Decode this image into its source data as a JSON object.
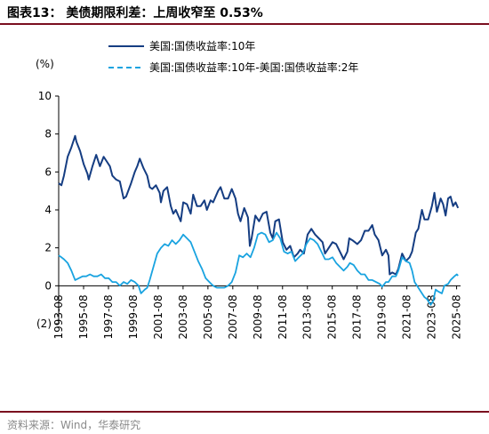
{
  "title": "图表13：  美债期限利差：上周收窄至 0.53%",
  "source": "资料来源：Wind，华泰研究",
  "colors": {
    "series1": "#153d82",
    "series2": "#19a3e0",
    "rule": "#7a0f1f"
  },
  "chart_data": {
    "type": "line",
    "ylabel": "(%)",
    "ylim": [
      -2,
      10
    ],
    "yticks": [
      10,
      8,
      6,
      4,
      2,
      0,
      -2
    ],
    "ytick_labels": [
      "10",
      "8",
      "6",
      "4",
      "2",
      "0",
      "(2)"
    ],
    "xlim": [
      1993.58,
      2025.9
    ],
    "xtick_labels": [
      "1993-08",
      "1995-08",
      "1997-08",
      "1999-08",
      "2001-08",
      "2003-08",
      "2005-08",
      "2007-08",
      "2009-08",
      "2011-08",
      "2013-08",
      "2015-08",
      "2017-08",
      "2019-08",
      "2021-08",
      "2023-08",
      "2025-08"
    ],
    "legend_position": "top",
    "series": [
      {
        "name": "美国:国债收益率:10年",
        "style": "solid",
        "points": [
          [
            1993.58,
            5.4
          ],
          [
            1993.8,
            5.3
          ],
          [
            1994.0,
            5.8
          ],
          [
            1994.3,
            6.8
          ],
          [
            1994.6,
            7.3
          ],
          [
            1994.9,
            7.9
          ],
          [
            1995.0,
            7.6
          ],
          [
            1995.3,
            7.1
          ],
          [
            1995.6,
            6.4
          ],
          [
            1995.9,
            5.9
          ],
          [
            1996.0,
            5.6
          ],
          [
            1996.3,
            6.3
          ],
          [
            1996.6,
            6.9
          ],
          [
            1996.9,
            6.3
          ],
          [
            1997.2,
            6.8
          ],
          [
            1997.4,
            6.6
          ],
          [
            1997.7,
            6.3
          ],
          [
            1997.9,
            5.8
          ],
          [
            1998.2,
            5.6
          ],
          [
            1998.5,
            5.5
          ],
          [
            1998.8,
            4.6
          ],
          [
            1999.0,
            4.7
          ],
          [
            1999.4,
            5.4
          ],
          [
            1999.7,
            6.0
          ],
          [
            1999.9,
            6.3
          ],
          [
            2000.1,
            6.7
          ],
          [
            2000.4,
            6.2
          ],
          [
            2000.7,
            5.8
          ],
          [
            2000.9,
            5.2
          ],
          [
            2001.1,
            5.1
          ],
          [
            2001.4,
            5.3
          ],
          [
            2001.7,
            4.9
          ],
          [
            2001.8,
            4.4
          ],
          [
            2002.0,
            5.0
          ],
          [
            2002.3,
            5.2
          ],
          [
            2002.6,
            4.2
          ],
          [
            2002.8,
            3.8
          ],
          [
            2003.0,
            4.0
          ],
          [
            2003.4,
            3.4
          ],
          [
            2003.6,
            4.4
          ],
          [
            2003.9,
            4.3
          ],
          [
            2004.2,
            3.8
          ],
          [
            2004.4,
            4.8
          ],
          [
            2004.7,
            4.2
          ],
          [
            2005.0,
            4.2
          ],
          [
            2005.3,
            4.5
          ],
          [
            2005.5,
            4.0
          ],
          [
            2005.8,
            4.5
          ],
          [
            2006.0,
            4.4
          ],
          [
            2006.4,
            5.0
          ],
          [
            2006.6,
            5.2
          ],
          [
            2006.9,
            4.6
          ],
          [
            2007.2,
            4.6
          ],
          [
            2007.5,
            5.1
          ],
          [
            2007.8,
            4.6
          ],
          [
            2008.0,
            3.8
          ],
          [
            2008.2,
            3.4
          ],
          [
            2008.5,
            4.1
          ],
          [
            2008.8,
            3.6
          ],
          [
            2008.95,
            2.1
          ],
          [
            2009.1,
            2.5
          ],
          [
            2009.4,
            3.7
          ],
          [
            2009.7,
            3.4
          ],
          [
            2010.0,
            3.8
          ],
          [
            2010.3,
            3.9
          ],
          [
            2010.6,
            2.8
          ],
          [
            2010.8,
            2.5
          ],
          [
            2011.0,
            3.4
          ],
          [
            2011.3,
            3.5
          ],
          [
            2011.6,
            2.3
          ],
          [
            2011.9,
            1.9
          ],
          [
            2012.2,
            2.1
          ],
          [
            2012.5,
            1.5
          ],
          [
            2012.8,
            1.7
          ],
          [
            2013.0,
            1.9
          ],
          [
            2013.3,
            1.7
          ],
          [
            2013.6,
            2.7
          ],
          [
            2013.9,
            3.0
          ],
          [
            2014.2,
            2.7
          ],
          [
            2014.5,
            2.5
          ],
          [
            2014.8,
            2.3
          ],
          [
            2015.0,
            1.7
          ],
          [
            2015.3,
            2.0
          ],
          [
            2015.6,
            2.3
          ],
          [
            2015.9,
            2.2
          ],
          [
            2016.2,
            1.8
          ],
          [
            2016.5,
            1.4
          ],
          [
            2016.8,
            1.8
          ],
          [
            2016.95,
            2.5
          ],
          [
            2017.2,
            2.4
          ],
          [
            2017.6,
            2.2
          ],
          [
            2017.9,
            2.4
          ],
          [
            2018.2,
            2.9
          ],
          [
            2018.5,
            2.9
          ],
          [
            2018.8,
            3.2
          ],
          [
            2019.0,
            2.7
          ],
          [
            2019.3,
            2.4
          ],
          [
            2019.6,
            1.6
          ],
          [
            2019.9,
            1.9
          ],
          [
            2020.1,
            1.6
          ],
          [
            2020.2,
            0.6
          ],
          [
            2020.4,
            0.7
          ],
          [
            2020.7,
            0.6
          ],
          [
            2020.9,
            0.9
          ],
          [
            2021.2,
            1.7
          ],
          [
            2021.5,
            1.3
          ],
          [
            2021.8,
            1.5
          ],
          [
            2022.0,
            1.8
          ],
          [
            2022.3,
            2.8
          ],
          [
            2022.5,
            3.0
          ],
          [
            2022.8,
            4.0
          ],
          [
            2023.0,
            3.5
          ],
          [
            2023.3,
            3.5
          ],
          [
            2023.6,
            4.2
          ],
          [
            2023.8,
            4.9
          ],
          [
            2024.0,
            3.9
          ],
          [
            2024.3,
            4.6
          ],
          [
            2024.5,
            4.3
          ],
          [
            2024.7,
            3.7
          ],
          [
            2024.9,
            4.6
          ],
          [
            2025.1,
            4.7
          ],
          [
            2025.3,
            4.2
          ],
          [
            2025.5,
            4.4
          ],
          [
            2025.7,
            4.1
          ]
        ]
      },
      {
        "name": "美国:国债收益率:10年-美国:国债收益率:2年",
        "style": "dashed",
        "points": [
          [
            1993.58,
            1.6
          ],
          [
            1993.8,
            1.5
          ],
          [
            1994.0,
            1.4
          ],
          [
            1994.3,
            1.2
          ],
          [
            1994.6,
            0.8
          ],
          [
            1994.9,
            0.3
          ],
          [
            1995.2,
            0.4
          ],
          [
            1995.5,
            0.5
          ],
          [
            1995.8,
            0.5
          ],
          [
            1996.1,
            0.6
          ],
          [
            1996.4,
            0.5
          ],
          [
            1996.7,
            0.5
          ],
          [
            1997.0,
            0.6
          ],
          [
            1997.3,
            0.4
          ],
          [
            1997.6,
            0.4
          ],
          [
            1997.9,
            0.2
          ],
          [
            1998.2,
            0.2
          ],
          [
            1998.5,
            0.0
          ],
          [
            1998.8,
            0.2
          ],
          [
            1999.1,
            0.1
          ],
          [
            1999.4,
            0.3
          ],
          [
            1999.7,
            0.2
          ],
          [
            2000.0,
            0.0
          ],
          [
            2000.2,
            -0.4
          ],
          [
            2000.5,
            -0.2
          ],
          [
            2000.7,
            -0.1
          ],
          [
            2000.9,
            0.3
          ],
          [
            2001.2,
            1.0
          ],
          [
            2001.5,
            1.7
          ],
          [
            2001.8,
            2.0
          ],
          [
            2002.1,
            2.2
          ],
          [
            2002.4,
            2.1
          ],
          [
            2002.7,
            2.4
          ],
          [
            2003.0,
            2.2
          ],
          [
            2003.3,
            2.4
          ],
          [
            2003.6,
            2.7
          ],
          [
            2003.9,
            2.5
          ],
          [
            2004.2,
            2.3
          ],
          [
            2004.5,
            1.8
          ],
          [
            2004.8,
            1.3
          ],
          [
            2005.1,
            0.9
          ],
          [
            2005.4,
            0.4
          ],
          [
            2005.7,
            0.2
          ],
          [
            2006.0,
            0.0
          ],
          [
            2006.3,
            -0.1
          ],
          [
            2006.6,
            -0.1
          ],
          [
            2006.9,
            -0.1
          ],
          [
            2007.2,
            0.0
          ],
          [
            2007.5,
            0.2
          ],
          [
            2007.8,
            0.7
          ],
          [
            2008.1,
            1.6
          ],
          [
            2008.4,
            1.5
          ],
          [
            2008.7,
            1.7
          ],
          [
            2009.0,
            1.5
          ],
          [
            2009.3,
            2.0
          ],
          [
            2009.6,
            2.7
          ],
          [
            2009.9,
            2.8
          ],
          [
            2010.2,
            2.7
          ],
          [
            2010.5,
            2.3
          ],
          [
            2010.8,
            2.4
          ],
          [
            2011.1,
            2.8
          ],
          [
            2011.4,
            2.5
          ],
          [
            2011.7,
            1.8
          ],
          [
            2012.0,
            1.7
          ],
          [
            2012.3,
            1.8
          ],
          [
            2012.6,
            1.3
          ],
          [
            2012.9,
            1.5
          ],
          [
            2013.2,
            1.7
          ],
          [
            2013.5,
            2.2
          ],
          [
            2013.8,
            2.5
          ],
          [
            2014.1,
            2.4
          ],
          [
            2014.4,
            2.2
          ],
          [
            2014.7,
            1.8
          ],
          [
            2015.0,
            1.4
          ],
          [
            2015.3,
            1.4
          ],
          [
            2015.6,
            1.5
          ],
          [
            2015.9,
            1.2
          ],
          [
            2016.2,
            1.0
          ],
          [
            2016.5,
            0.8
          ],
          [
            2016.8,
            1.0
          ],
          [
            2017.0,
            1.2
          ],
          [
            2017.3,
            1.1
          ],
          [
            2017.6,
            0.8
          ],
          [
            2017.9,
            0.6
          ],
          [
            2018.2,
            0.6
          ],
          [
            2018.5,
            0.3
          ],
          [
            2018.8,
            0.3
          ],
          [
            2019.1,
            0.2
          ],
          [
            2019.4,
            0.1
          ],
          [
            2019.6,
            -0.05
          ],
          [
            2019.9,
            0.2
          ],
          [
            2020.1,
            0.2
          ],
          [
            2020.4,
            0.5
          ],
          [
            2020.7,
            0.5
          ],
          [
            2020.9,
            0.8
          ],
          [
            2021.2,
            1.5
          ],
          [
            2021.5,
            1.3
          ],
          [
            2021.8,
            1.2
          ],
          [
            2022.0,
            0.8
          ],
          [
            2022.2,
            0.2
          ],
          [
            2022.5,
            -0.1
          ],
          [
            2022.8,
            -0.4
          ],
          [
            2023.0,
            -0.6
          ],
          [
            2023.2,
            -0.7
          ],
          [
            2023.5,
            -1.0
          ],
          [
            2023.7,
            -0.8
          ],
          [
            2023.9,
            -0.2
          ],
          [
            2024.1,
            -0.3
          ],
          [
            2024.4,
            -0.4
          ],
          [
            2024.6,
            0.0
          ],
          [
            2024.9,
            0.1
          ],
          [
            2025.1,
            0.3
          ],
          [
            2025.4,
            0.5
          ],
          [
            2025.6,
            0.6
          ],
          [
            2025.7,
            0.53
          ]
        ]
      }
    ]
  }
}
